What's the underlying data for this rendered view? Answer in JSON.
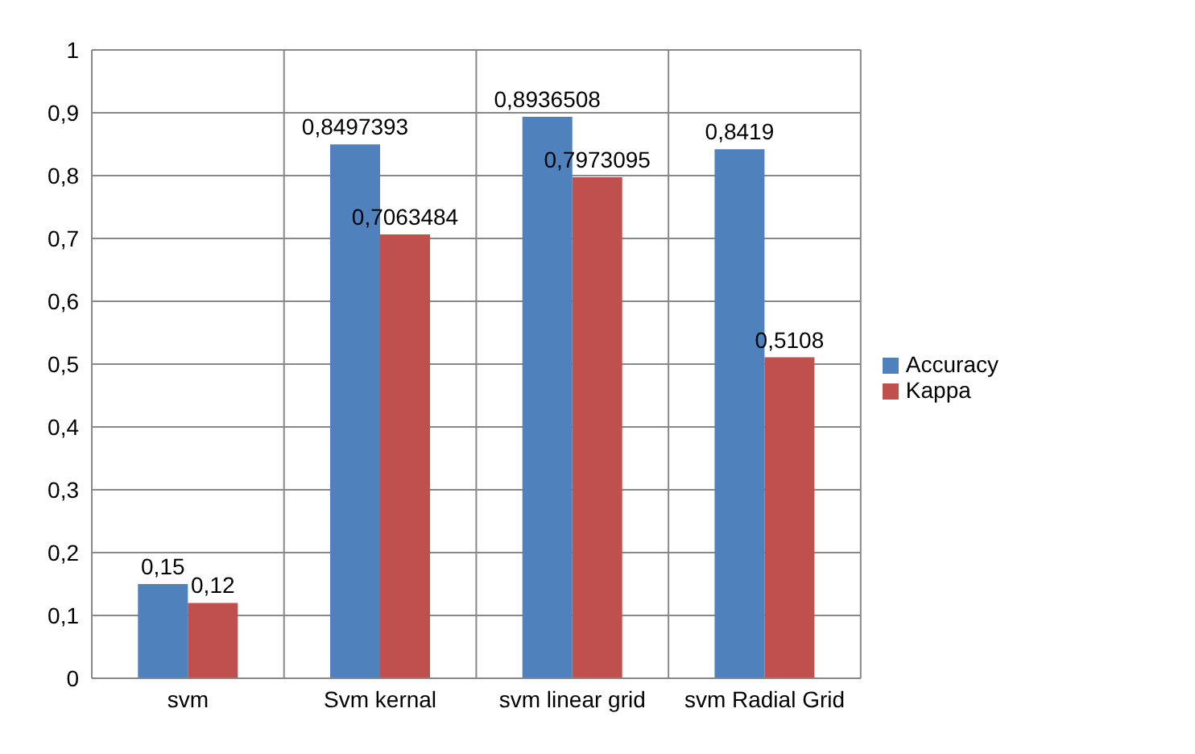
{
  "chart_data": {
    "type": "bar",
    "categories": [
      "svm",
      "Svm kernal",
      "svm linear grid",
      "svm Radial Grid"
    ],
    "series": [
      {
        "name": "Accuracy",
        "color": "#4f81bd",
        "values": [
          0.15,
          0.8497393,
          0.8936508,
          0.8419
        ],
        "value_labels": [
          "0,15",
          "0,8497393",
          "0,8936508",
          "0,8419"
        ]
      },
      {
        "name": "Kappa",
        "color": "#c0504d",
        "values": [
          0.12,
          0.7063484,
          0.7973095,
          0.5108
        ],
        "value_labels": [
          "0,12",
          "0,7063484",
          "0,7973095",
          "0,5108"
        ]
      }
    ],
    "ylim": [
      0,
      1
    ],
    "yticks": [
      0,
      {
        "value": 0.1,
        "label": "0,1"
      },
      {
        "value": 0.2,
        "label": "0,2"
      },
      {
        "value": 0.3,
        "label": "0,3"
      },
      {
        "value": 0.4,
        "label": "0,4"
      },
      {
        "value": 0.5,
        "label": "0,5"
      },
      {
        "value": 0.6,
        "label": "0,6"
      },
      {
        "value": 0.7,
        "label": "0,7"
      },
      {
        "value": 0.8,
        "label": "0,8"
      },
      {
        "value": 0.9,
        "label": "0,9"
      },
      1
    ],
    "grid": true,
    "legend": "right"
  }
}
